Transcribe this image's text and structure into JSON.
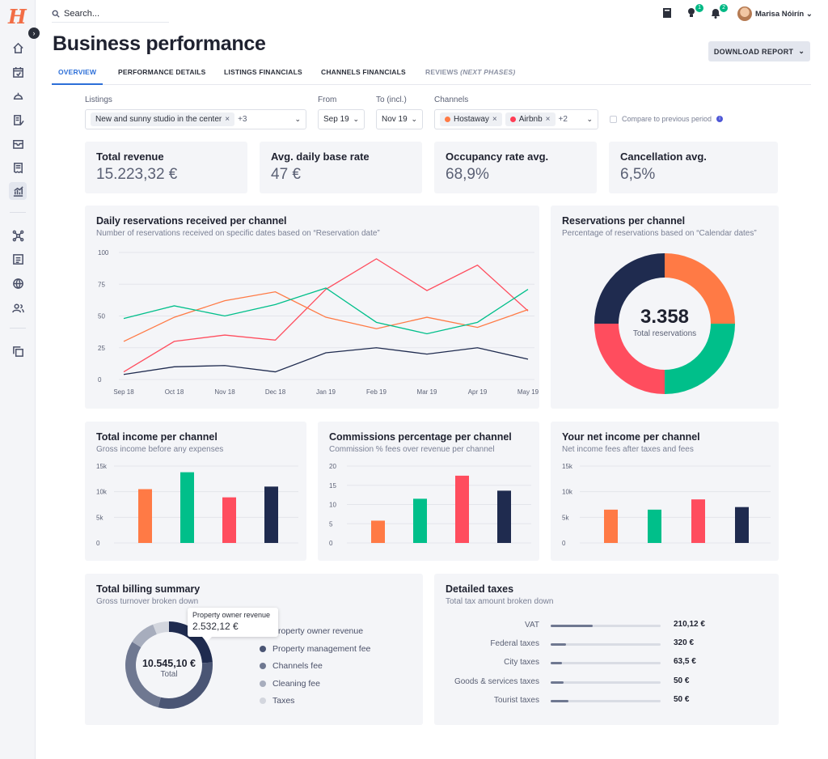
{
  "app": {
    "logo": "H"
  },
  "search": {
    "placeholder": "Search..."
  },
  "user": {
    "name": "Marisa Nóirín"
  },
  "notifications": {
    "lightbulb_count": "1",
    "bell_count": "2"
  },
  "page": {
    "title": "Business performance",
    "download_label": "DOWNLOAD REPORT"
  },
  "tabs": [
    {
      "label": "OVERVIEW"
    },
    {
      "label": "PERFORMANCE DETAILS"
    },
    {
      "label": "LISTINGS FINANCIALS"
    },
    {
      "label": "CHANNELS FINANCIALS"
    },
    {
      "label": "REVIEWS",
      "note": "(NEXT PHASES)"
    }
  ],
  "filters": {
    "listings_label": "Listings",
    "listings_chip": "New and sunny studio in the center",
    "listings_more": "+3",
    "from_label": "From",
    "from_value": "Sep 19",
    "to_label": "To (incl.)",
    "to_value": "Nov 19",
    "channels_label": "Channels",
    "channel_chips": [
      {
        "label": "Hostaway",
        "color": "#ff7a45"
      },
      {
        "label": "Airbnb",
        "color": "#ff3d55"
      }
    ],
    "channels_more": "+2",
    "compare_label": "Compare to previous period"
  },
  "kpis": [
    {
      "label": "Total revenue",
      "value": "15.223,32 €"
    },
    {
      "label": "Avg. daily base rate",
      "value": "47 €"
    },
    {
      "label": "Occupancy rate avg.",
      "value": "68,9%"
    },
    {
      "label": "Cancellation avg.",
      "value": "6,5%"
    }
  ],
  "colors": {
    "orange": "#ff7a45",
    "red": "#ff4d5e",
    "green": "#00bf8a",
    "navy": "#1f2b4f",
    "accent": "#2d6fd8"
  },
  "daily_chart": {
    "title": "Daily reservations received per channel",
    "subtitle": "Number of reservations received on specific dates based on “Reservation date”"
  },
  "donut_chart": {
    "title": "Reservations per channel",
    "subtitle": "Percentage of reservations based on “Calendar dates”",
    "center_value": "3.358",
    "center_label": "Total reservations"
  },
  "income_chart": {
    "title": "Total income per channel",
    "subtitle": "Gross income before any expenses"
  },
  "commission_chart": {
    "title": "Commissions percentage per channel",
    "subtitle": "Commission % fees over revenue per channel"
  },
  "net_chart": {
    "title": "Your net income per channel",
    "subtitle": "Net income fees after taxes and fees"
  },
  "billing": {
    "title": "Total billing summary",
    "subtitle": "Gross turnover broken down",
    "center_value": "10.545,10 €",
    "center_label": "Total",
    "tooltip_label": "Property owner revenue",
    "tooltip_value": "2.532,12 €",
    "legend": [
      {
        "label": "Property owner revenue",
        "color": "#1f2b4f"
      },
      {
        "label": "Property management fee",
        "color": "#4a5574"
      },
      {
        "label": "Channels fee",
        "color": "#6f7891"
      },
      {
        "label": "Cleaning fee",
        "color": "#a7adbd"
      },
      {
        "label": "Taxes",
        "color": "#d3d6de"
      }
    ]
  },
  "taxes": {
    "title": "Detailed taxes",
    "subtitle": "Total tax amount broken down",
    "rows": [
      {
        "label": "VAT",
        "value": "210,12 €",
        "fraction": 0.38
      },
      {
        "label": "Federal taxes",
        "value": "320 €",
        "fraction": 0.14
      },
      {
        "label": "City taxes",
        "value": "63,5 €",
        "fraction": 0.1
      },
      {
        "label": "Goods & services taxes",
        "value": "50 €",
        "fraction": 0.12
      },
      {
        "label": "Tourist taxes",
        "value": "50 €",
        "fraction": 0.16
      }
    ]
  },
  "chart_data": [
    {
      "type": "line",
      "title": "Daily reservations received per channel",
      "x": [
        "Sep 18",
        "Oct 18",
        "Nov 18",
        "Dec 18",
        "Jan 19",
        "Feb 19",
        "Mar 19",
        "Apr 19",
        "May 19"
      ],
      "ylim": [
        0,
        100
      ],
      "yticks": [
        0,
        25,
        50,
        75,
        100
      ],
      "series": [
        {
          "color": "#ff4d5e",
          "values": [
            6,
            30,
            35,
            31,
            71,
            95,
            70,
            90,
            54
          ]
        },
        {
          "color": "#ff7a45",
          "values": [
            30,
            49,
            62,
            69,
            49,
            40,
            49,
            41,
            55
          ]
        },
        {
          "color": "#00bf8a",
          "values": [
            48,
            58,
            50,
            59,
            72,
            45,
            36,
            45,
            71
          ]
        },
        {
          "color": "#1f2b4f",
          "values": [
            4,
            10,
            11,
            6,
            21,
            25,
            20,
            25,
            16
          ]
        }
      ]
    },
    {
      "type": "pie",
      "title": "Reservations per channel",
      "values": [
        25,
        25,
        25,
        25
      ],
      "colors": [
        "#ff7a45",
        "#00bf8a",
        "#ff4d5e",
        "#1f2b4f"
      ]
    },
    {
      "type": "bar",
      "title": "Total income per channel",
      "ylim": [
        0,
        15000
      ],
      "yticks": [
        "0",
        "5k",
        "10k",
        "15k"
      ],
      "values": [
        10500,
        13800,
        8900,
        11000
      ],
      "colors": [
        "#ff7a45",
        "#00bf8a",
        "#ff4d5e",
        "#1f2b4f"
      ]
    },
    {
      "type": "bar",
      "title": "Commissions percentage per channel",
      "ylim": [
        0,
        20
      ],
      "yticks": [
        "0",
        "5",
        "10",
        "15",
        "20"
      ],
      "values": [
        5.8,
        11.5,
        17.5,
        13.6
      ],
      "colors": [
        "#ff7a45",
        "#00bf8a",
        "#ff4d5e",
        "#1f2b4f"
      ]
    },
    {
      "type": "bar",
      "title": "Your net income per channel",
      "ylim": [
        0,
        15000
      ],
      "yticks": [
        "0",
        "5k",
        "10k",
        "15k"
      ],
      "values": [
        6500,
        6500,
        8500,
        7000
      ],
      "colors": [
        "#ff7a45",
        "#00bf8a",
        "#ff4d5e",
        "#1f2b4f"
      ]
    },
    {
      "type": "pie",
      "title": "Total billing summary",
      "values": [
        24,
        30,
        30,
        10,
        6
      ],
      "colors": [
        "#1f2b4f",
        "#4a5574",
        "#6f7891",
        "#a7adbd",
        "#d3d6de"
      ]
    }
  ]
}
